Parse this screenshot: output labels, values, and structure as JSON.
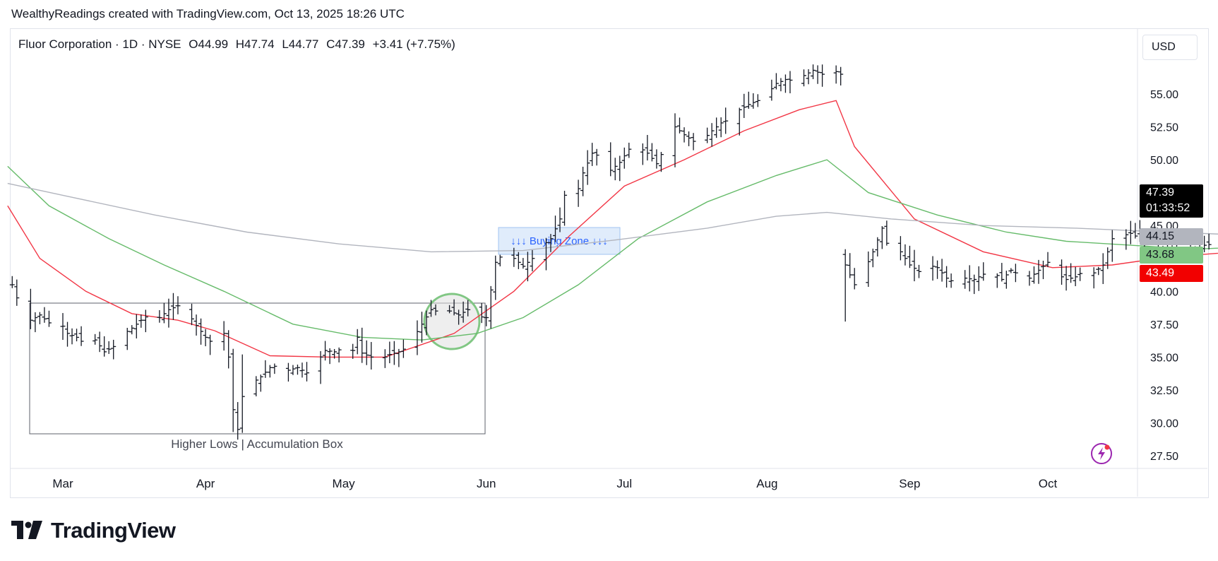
{
  "header": {
    "credit": "WealthyReadings created with TradingView.com, Oct 13, 2025 18:26 UTC"
  },
  "legend": {
    "symbol": "Fluor Corporation · 1D · NYSE",
    "open": "O44.99",
    "high": "H47.74",
    "low": "L44.77",
    "close": "C47.39",
    "change": "+3.41 (+7.75%)"
  },
  "currency": "USD",
  "price_tags": {
    "last": "47.39",
    "countdown": "01:33:52",
    "ma_gray": "44.15",
    "ma_green": "43.68",
    "ma_red": "43.49"
  },
  "annotations": {
    "buying_zone": "↓↓↓ Buying Zone ↓↓↓",
    "box_label": "Higher Lows | Accumulation Box"
  },
  "branding": {
    "logo_text": "TradingView"
  },
  "colors": {
    "bar": "#131722",
    "ma_red": "#f23645",
    "ma_green": "#66bb6a",
    "ma_gray": "#b2b5be",
    "tag_last_bg": "#000000",
    "tag_gray_bg": "#b2b5be",
    "tag_green_bg": "#81c784",
    "tag_red_bg": "#f20000",
    "zone_fill": "#dbe9fb",
    "zone_text": "#2962ff"
  },
  "icons": {
    "flash": "lightning-bolt-icon",
    "logo": "tradingview-logo-icon"
  },
  "chart_data": {
    "type": "ohlc-bar",
    "y_axis": {
      "min": 27.5,
      "max": 57.5,
      "ticks": [
        27.5,
        30.0,
        32.5,
        35.0,
        37.5,
        40.0,
        45.0,
        50.0,
        52.5,
        55.0
      ]
    },
    "x_axis": {
      "labels": [
        "Mar",
        "Apr",
        "May",
        "Jun",
        "Jul",
        "Aug",
        "Sep",
        "Oct"
      ],
      "label_positions_days": [
        0,
        31,
        61,
        92,
        122,
        153,
        184,
        214
      ]
    },
    "close_path": [
      [
        -11,
        40.5
      ],
      [
        -9,
        38.5
      ],
      [
        -7,
        37.8
      ],
      [
        -5,
        38.2
      ],
      [
        -3,
        37.6
      ],
      [
        -1,
        37.9
      ],
      [
        1,
        36.8
      ],
      [
        3,
        36.5
      ],
      [
        5,
        35.9
      ],
      [
        7,
        36.3
      ],
      [
        9,
        35.4
      ],
      [
        11,
        35.8
      ],
      [
        13,
        36.7
      ],
      [
        15,
        37.2
      ],
      [
        17,
        37.8
      ],
      [
        19,
        38.3
      ],
      [
        21,
        38.0
      ],
      [
        23,
        38.6
      ],
      [
        25,
        38.9
      ],
      [
        27,
        38.4
      ],
      [
        29,
        37.4
      ],
      [
        31,
        36.5
      ],
      [
        33,
        35.9
      ],
      [
        35,
        36.8
      ],
      [
        36,
        35.0
      ],
      [
        37,
        31.0
      ],
      [
        38,
        29.5
      ],
      [
        39,
        32.0
      ],
      [
        40,
        34.5
      ],
      [
        41,
        33.0
      ],
      [
        43,
        33.5
      ],
      [
        45,
        34.2
      ],
      [
        47,
        34.4
      ],
      [
        49,
        34.0
      ],
      [
        51,
        34.2
      ],
      [
        53,
        33.8
      ],
      [
        55,
        34.5
      ],
      [
        57,
        35.5
      ],
      [
        59,
        35.4
      ],
      [
        61,
        35.7
      ],
      [
        63,
        35.5
      ],
      [
        64,
        36.5
      ],
      [
        65,
        35.3
      ],
      [
        67,
        35.0
      ],
      [
        69,
        34.8
      ],
      [
        71,
        35.2
      ],
      [
        73,
        35.4
      ],
      [
        75,
        35.8
      ],
      [
        78,
        37.5
      ],
      [
        80,
        38.6
      ],
      [
        82,
        38.4
      ],
      [
        84,
        38.5
      ],
      [
        86,
        38.2
      ],
      [
        88,
        38.6
      ],
      [
        90,
        38.1
      ],
      [
        92,
        38.0
      ],
      [
        94,
        42.2
      ],
      [
        96,
        43.0
      ],
      [
        98,
        42.5
      ],
      [
        100,
        41.9
      ],
      [
        102,
        42.5
      ],
      [
        104,
        43.4
      ],
      [
        106,
        44.0
      ],
      [
        108,
        45.5
      ],
      [
        109,
        47.3
      ],
      [
        110,
        48.6
      ],
      [
        111,
        46.7
      ],
      [
        112,
        47.8
      ],
      [
        113,
        49.0
      ],
      [
        115,
        50.5
      ],
      [
        117,
        50.2
      ],
      [
        119,
        49.2
      ],
      [
        121,
        49.8
      ],
      [
        123,
        50.8
      ],
      [
        125,
        51.0
      ],
      [
        127,
        50.5
      ],
      [
        129,
        49.7
      ],
      [
        131,
        51.1
      ],
      [
        133,
        52.5
      ],
      [
        135,
        51.9
      ],
      [
        137,
        51.4
      ],
      [
        139,
        51.5
      ],
      [
        141,
        52.2
      ],
      [
        143,
        52.8
      ],
      [
        145,
        53.1
      ],
      [
        147,
        53.8
      ],
      [
        149,
        54.2
      ],
      [
        151,
        54.5
      ],
      [
        153,
        55.0
      ],
      [
        155,
        55.8
      ],
      [
        157,
        56.1
      ],
      [
        159,
        56.0
      ],
      [
        160,
        55.6
      ],
      [
        161,
        56.4
      ],
      [
        163,
        56.8
      ],
      [
        165,
        56.5
      ],
      [
        167,
        56.2
      ],
      [
        168,
        56.7
      ],
      [
        169,
        56.5
      ],
      [
        170,
        42.0
      ],
      [
        172,
        40.5
      ],
      [
        174,
        41.5
      ],
      [
        176,
        43.0
      ],
      [
        178,
        44.8
      ],
      [
        180,
        42.5
      ],
      [
        182,
        43.0
      ],
      [
        184,
        42.0
      ],
      [
        186,
        41.5
      ],
      [
        188,
        42.0
      ],
      [
        190,
        41.8
      ],
      [
        192,
        41.0
      ],
      [
        194,
        40.6
      ],
      [
        196,
        41.0
      ],
      [
        198,
        40.9
      ],
      [
        200,
        41.3
      ],
      [
        202,
        41.5
      ],
      [
        204,
        40.9
      ],
      [
        206,
        41.6
      ],
      [
        208,
        41.2
      ],
      [
        210,
        41.0
      ],
      [
        212,
        41.6
      ],
      [
        214,
        42.2
      ],
      [
        216,
        41.3
      ],
      [
        218,
        40.9
      ],
      [
        220,
        41.1
      ],
      [
        222,
        41.6
      ],
      [
        224,
        41.4
      ],
      [
        226,
        42.0
      ],
      [
        228,
        44.0
      ],
      [
        230,
        44.2
      ],
      [
        232,
        44.4
      ],
      [
        234,
        44.0
      ],
      [
        236,
        43.5
      ],
      [
        238,
        43.1
      ],
      [
        240,
        43.2
      ],
      [
        242,
        43.3
      ],
      [
        244,
        43.4
      ],
      [
        246,
        43.0
      ],
      [
        248,
        43.5
      ],
      [
        250,
        43.6
      ],
      [
        252,
        43.8
      ],
      [
        254,
        43.4
      ],
      [
        256,
        44.0
      ],
      [
        258,
        44.5
      ],
      [
        260,
        43.9
      ],
      [
        262,
        44.2
      ],
      [
        264,
        44.4
      ],
      [
        265,
        45.8
      ],
      [
        266,
        47.39
      ]
    ],
    "series": [
      {
        "name": "",
        "color_key": "ma_red",
        "points": [
          [
            -12,
            46.5
          ],
          [
            -5,
            42.5
          ],
          [
            5,
            40.0
          ],
          [
            15,
            38.3
          ],
          [
            25,
            37.8
          ],
          [
            33,
            37.0
          ],
          [
            45,
            35.1
          ],
          [
            58,
            35.0
          ],
          [
            70,
            35.0
          ],
          [
            85,
            36.8
          ],
          [
            98,
            40.0
          ],
          [
            110,
            44.2
          ],
          [
            122,
            48.0
          ],
          [
            135,
            50.0
          ],
          [
            148,
            52.2
          ],
          [
            160,
            53.8
          ],
          [
            168,
            54.5
          ],
          [
            172,
            51.0
          ],
          [
            185,
            45.5
          ],
          [
            200,
            43.0
          ],
          [
            215,
            41.8
          ],
          [
            228,
            42.0
          ],
          [
            240,
            42.6
          ],
          [
            255,
            43.0
          ],
          [
            262,
            43.2
          ],
          [
            266,
            43.49
          ]
        ]
      },
      {
        "name": "",
        "color_key": "ma_green",
        "points": [
          [
            -12,
            49.5
          ],
          [
            -3,
            46.5
          ],
          [
            10,
            44.0
          ],
          [
            22,
            42.0
          ],
          [
            35,
            40.0
          ],
          [
            50,
            37.5
          ],
          [
            65,
            36.5
          ],
          [
            78,
            36.3
          ],
          [
            90,
            36.8
          ],
          [
            100,
            38.0
          ],
          [
            112,
            40.5
          ],
          [
            125,
            44.0
          ],
          [
            140,
            46.8
          ],
          [
            155,
            48.8
          ],
          [
            166,
            50.0
          ],
          [
            175,
            47.5
          ],
          [
            190,
            45.8
          ],
          [
            205,
            44.5
          ],
          [
            218,
            43.8
          ],
          [
            232,
            43.5
          ],
          [
            246,
            43.2
          ],
          [
            258,
            43.4
          ],
          [
            266,
            43.68
          ]
        ]
      },
      {
        "name": "",
        "color_key": "ma_gray",
        "points": [
          [
            -12,
            48.2
          ],
          [
            0,
            47.3
          ],
          [
            20,
            45.8
          ],
          [
            40,
            44.5
          ],
          [
            60,
            43.6
          ],
          [
            80,
            43.0
          ],
          [
            100,
            43.1
          ],
          [
            120,
            43.9
          ],
          [
            140,
            44.8
          ],
          [
            155,
            45.7
          ],
          [
            166,
            46.0
          ],
          [
            180,
            45.5
          ],
          [
            200,
            45.0
          ],
          [
            220,
            44.8
          ],
          [
            240,
            44.5
          ],
          [
            266,
            44.15
          ]
        ]
      }
    ],
    "grid": false
  }
}
